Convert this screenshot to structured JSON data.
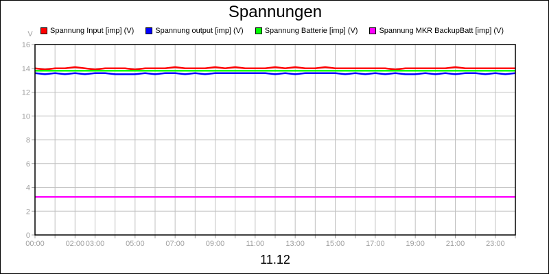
{
  "chart_data": {
    "type": "line",
    "title": "Spannungen",
    "xlabel": "11.12",
    "ylabel": "V",
    "ylim": [
      0,
      16
    ],
    "yticks": [
      "0",
      "2",
      "4",
      "6",
      "8",
      "10",
      "12",
      "14",
      "16"
    ],
    "xlim_hours": [
      0,
      24
    ],
    "xtick_labels": [
      "00:00",
      "02:00",
      "03:00",
      "05:00",
      "07:00",
      "09:00",
      "11:00",
      "13:00",
      "15:00",
      "17:00",
      "19:00",
      "21:00",
      "23:00"
    ],
    "grid": true,
    "legend_position": "top",
    "x_hours": [
      0,
      0.5,
      1,
      1.5,
      2,
      2.5,
      3,
      3.5,
      4,
      4.5,
      5,
      5.5,
      6,
      6.5,
      7,
      7.5,
      8,
      8.5,
      9,
      9.5,
      10,
      10.5,
      11,
      11.5,
      12,
      12.5,
      13,
      13.5,
      14,
      14.5,
      15,
      15.5,
      16,
      16.5,
      17,
      17.5,
      18,
      18.5,
      19,
      19.5,
      20,
      20.5,
      21,
      21.5,
      22,
      22.5,
      23,
      23.5,
      24
    ],
    "series": [
      {
        "name": "Spannung Input [imp] (V)",
        "color": "#ff0000",
        "values": [
          14.0,
          13.9,
          14.0,
          14.0,
          14.1,
          14.0,
          13.9,
          14.0,
          14.0,
          14.0,
          13.9,
          14.0,
          14.0,
          14.0,
          14.1,
          14.0,
          14.0,
          14.0,
          14.1,
          14.0,
          14.1,
          14.0,
          14.0,
          14.0,
          14.1,
          14.0,
          14.1,
          14.0,
          14.0,
          14.1,
          14.0,
          14.0,
          14.0,
          14.0,
          14.0,
          14.0,
          13.9,
          14.0,
          14.0,
          14.0,
          14.0,
          14.0,
          14.1,
          14.0,
          14.0,
          14.0,
          14.0,
          14.0,
          14.0
        ]
      },
      {
        "name": "Spannung output [imp] (V)",
        "color": "#0000ff",
        "values": [
          13.6,
          13.5,
          13.6,
          13.5,
          13.6,
          13.5,
          13.6,
          13.6,
          13.5,
          13.5,
          13.5,
          13.6,
          13.5,
          13.6,
          13.6,
          13.5,
          13.6,
          13.5,
          13.6,
          13.6,
          13.6,
          13.6,
          13.6,
          13.6,
          13.5,
          13.6,
          13.5,
          13.6,
          13.6,
          13.6,
          13.6,
          13.5,
          13.6,
          13.5,
          13.6,
          13.5,
          13.6,
          13.5,
          13.5,
          13.6,
          13.5,
          13.6,
          13.5,
          13.6,
          13.6,
          13.5,
          13.6,
          13.5,
          13.6
        ]
      },
      {
        "name": "Spannung Batterie [imp] (V)",
        "color": "#00ff00",
        "values": [
          13.8,
          13.8,
          13.8,
          13.8,
          13.8,
          13.8,
          13.8,
          13.8,
          13.8,
          13.8,
          13.8,
          13.8,
          13.8,
          13.8,
          13.8,
          13.8,
          13.8,
          13.8,
          13.8,
          13.8,
          13.8,
          13.8,
          13.8,
          13.8,
          13.8,
          13.8,
          13.8,
          13.8,
          13.8,
          13.8,
          13.8,
          13.8,
          13.8,
          13.8,
          13.8,
          13.8,
          13.8,
          13.8,
          13.8,
          13.8,
          13.8,
          13.8,
          13.8,
          13.8,
          13.8,
          13.8,
          13.8,
          13.8,
          13.8
        ]
      },
      {
        "name": "Spannung MKR BackupBatt [imp] (V)",
        "color": "#ff00ff",
        "values": [
          3.2,
          3.2,
          3.2,
          3.2,
          3.2,
          3.2,
          3.2,
          3.2,
          3.2,
          3.2,
          3.2,
          3.2,
          3.2,
          3.2,
          3.2,
          3.2,
          3.2,
          3.2,
          3.2,
          3.2,
          3.2,
          3.2,
          3.2,
          3.2,
          3.2,
          3.2,
          3.2,
          3.2,
          3.2,
          3.2,
          3.2,
          3.2,
          3.2,
          3.2,
          3.2,
          3.2,
          3.2,
          3.2,
          3.2,
          3.2,
          3.2,
          3.2,
          3.2,
          3.2,
          3.2,
          3.2,
          3.2,
          3.2,
          3.2
        ]
      }
    ]
  }
}
